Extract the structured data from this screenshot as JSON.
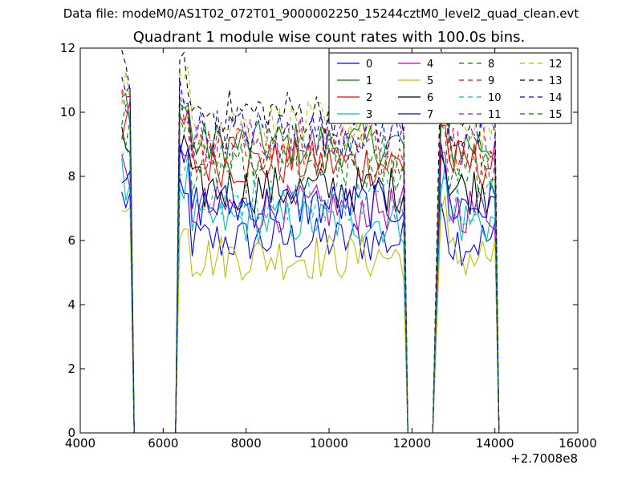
{
  "suptitle": "Data file: modeM0/AS1T02_072T01_9000002250_15244cztM0_level2_quad_clean.evt",
  "chart_data": {
    "type": "line",
    "title": "Quadrant 1 module wise count rates with 100.0s bins.",
    "xlabel": "",
    "ylabel": "",
    "x_offset_label": "+2.7008e8",
    "xlim": [
      4000,
      16000
    ],
    "ylim": [
      0,
      12
    ],
    "xticks": [
      "4000",
      "6000",
      "8000",
      "10000",
      "12000",
      "14000",
      "16000"
    ],
    "yticks": [
      "0",
      "2",
      "4",
      "6",
      "8",
      "10",
      "12"
    ],
    "grid": false,
    "legend": {
      "placement": "top-right",
      "ncol": 4
    },
    "x_segments": [
      [
        5000,
        5200
      ],
      [
        6400,
        11800
      ],
      [
        12700,
        14000
      ]
    ],
    "x_gaps": [
      5300,
      6300,
      11900,
      12500,
      14100
    ],
    "series": [
      {
        "name": "0",
        "color": "#0000ff",
        "dash": false,
        "level": 6.0
      },
      {
        "name": "1",
        "color": "#008000",
        "dash": false,
        "level": 9.0
      },
      {
        "name": "2",
        "color": "#ff0000",
        "dash": false,
        "level": 8.4
      },
      {
        "name": "3",
        "color": "#00bfbf",
        "dash": false,
        "level": 6.6
      },
      {
        "name": "4",
        "color": "#bf00bf",
        "dash": false,
        "level": 7.0
      },
      {
        "name": "5",
        "color": "#bfbf00",
        "dash": false,
        "level": 5.5
      },
      {
        "name": "6",
        "color": "#000000",
        "dash": false,
        "level": 7.6
      },
      {
        "name": "7",
        "color": "#0000ff",
        "dash": false,
        "level": 7.1
      },
      {
        "name": "8",
        "color": "#008000",
        "dash": true,
        "level": 8.2
      },
      {
        "name": "9",
        "color": "#ff0000",
        "dash": true,
        "level": 8.8
      },
      {
        "name": "10",
        "color": "#00bfbf",
        "dash": true,
        "level": 7.3
      },
      {
        "name": "11",
        "color": "#bf00bf",
        "dash": true,
        "level": 9.1
      },
      {
        "name": "12",
        "color": "#bfbf00",
        "dash": true,
        "level": 9.6
      },
      {
        "name": "13",
        "color": "#000000",
        "dash": true,
        "level": 10.0
      },
      {
        "name": "14",
        "color": "#0000ff",
        "dash": true,
        "level": 9.4
      },
      {
        "name": "15",
        "color": "#008000",
        "dash": true,
        "level": 8.6
      }
    ]
  }
}
